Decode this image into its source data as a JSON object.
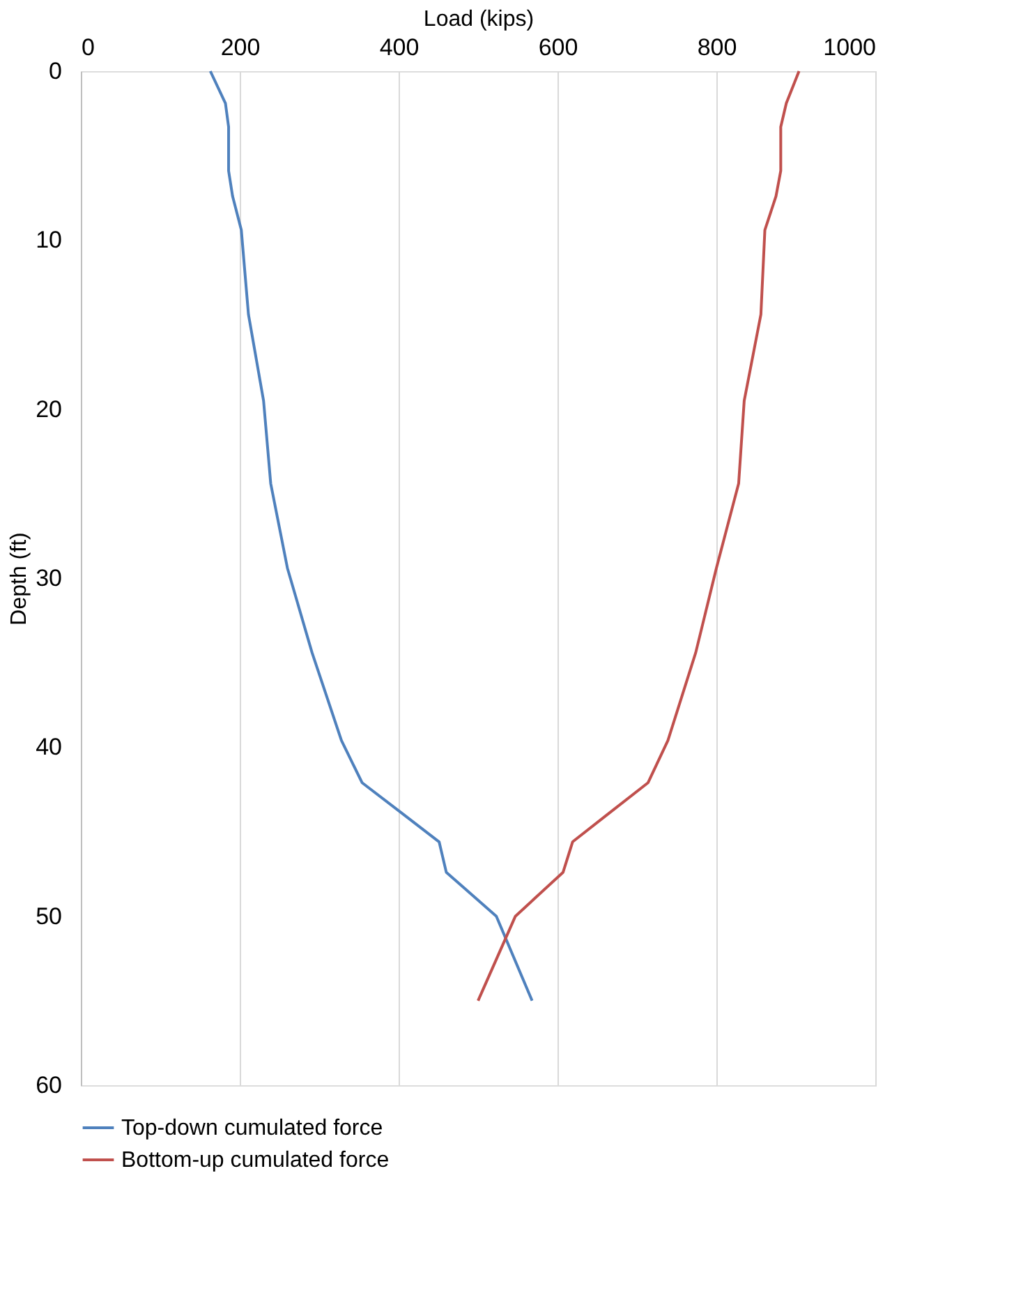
{
  "chart_data": {
    "type": "line",
    "xlabel": "Load (kips)",
    "ylabel": "Depth (ft)",
    "xlim": [
      0,
      1000
    ],
    "xticks": [
      0,
      200,
      400,
      600,
      800,
      1000
    ],
    "ylim": [
      60,
      0
    ],
    "yticks": [
      0,
      10,
      20,
      30,
      40,
      50,
      60
    ],
    "grid": "x",
    "legend": "bottom",
    "marker": "none",
    "line_style": "solid",
    "series": [
      {
        "name": "Top-down cumulated force",
        "color": "#4f81bd",
        "x": [
          163,
          182,
          186,
          186,
          191,
          202,
          211,
          230,
          239,
          260,
          291,
          328,
          354,
          404,
          451,
          460,
          523,
          568
        ],
        "values": [
          0,
          1.9,
          3.3,
          5.9,
          7.4,
          9.4,
          14.4,
          19.5,
          24.4,
          29.4,
          34.4,
          39.6,
          42.1,
          43.9,
          45.6,
          47.4,
          50,
          55
        ]
      },
      {
        "name": "Bottom-up cumulated force",
        "color": "#c0504d",
        "x": [
          904,
          888,
          881,
          881,
          875,
          861,
          856,
          835,
          828,
          800,
          774,
          739,
          714,
          665,
          619,
          607,
          547,
          500
        ],
        "values": [
          0,
          1.9,
          3.3,
          5.9,
          7.4,
          9.4,
          14.4,
          19.5,
          24.4,
          29.4,
          34.4,
          39.6,
          42.1,
          43.9,
          45.6,
          47.4,
          50,
          55
        ]
      }
    ]
  }
}
